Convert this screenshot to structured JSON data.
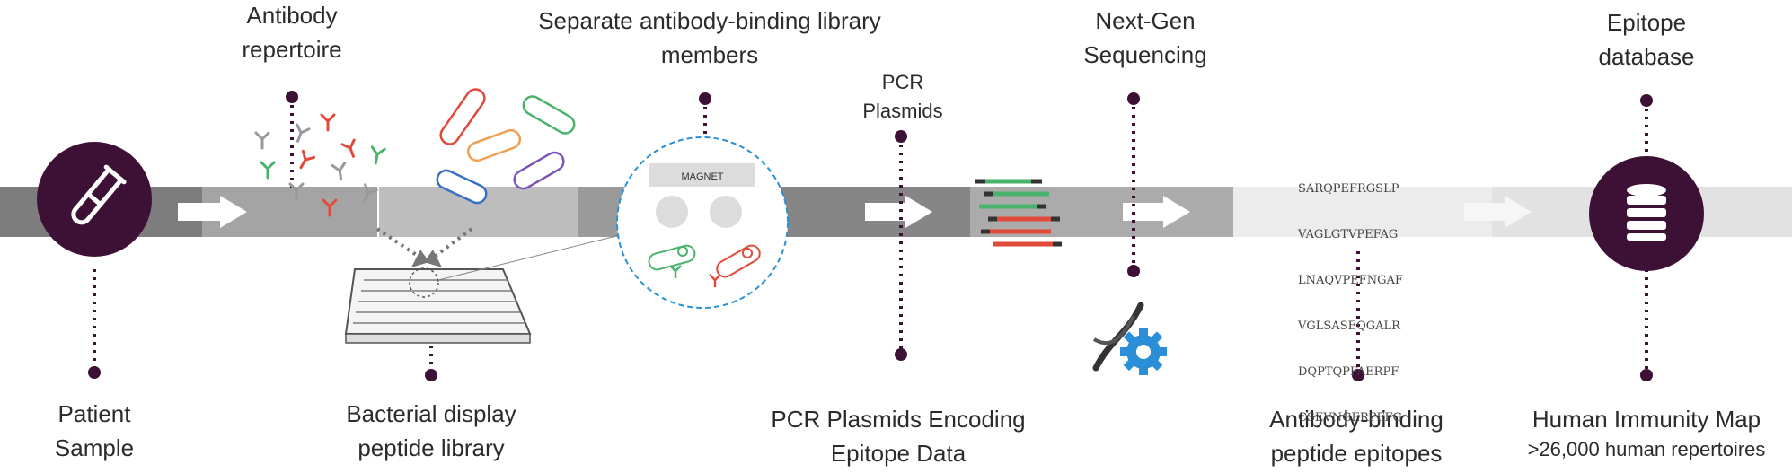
{
  "steps": {
    "patient_sample": {
      "line1": "Patient",
      "line2": "Sample"
    },
    "antibody_repertoire": {
      "line1": "Antibody",
      "line2": "repertoire"
    },
    "bacterial_library": {
      "line1": "Bacterial display",
      "line2": "peptide library"
    },
    "separate": {
      "line1": "Separate antibody-binding library",
      "line2": "members"
    },
    "pcr_plasmids_top": {
      "line1": "PCR",
      "line2": "Plasmids"
    },
    "pcr_plasmids_bottom": {
      "line1": "PCR Plasmids Encoding",
      "line2": "Epitope Data"
    },
    "ngs": {
      "line1": "Next-Gen",
      "line2": "Sequencing"
    },
    "epitopes": {
      "line1": "Antibody-binding",
      "line2": "peptide epitopes"
    },
    "epitope_db": {
      "line1": "Epitope",
      "line2": "database"
    },
    "immunity_map": {
      "line1": "Human Immunity Map",
      "line2": ">26,000 human repertoires"
    }
  },
  "magnet_label": "MAGNET",
  "sequences": [
    "SARQPEFRGSLP",
    "VAGLGTVPEFAG",
    "LNAQVPEFNGAF",
    "VGLSASEQGALR",
    "DQPTQPFAERPF",
    "CSEVNGERPFFG"
  ],
  "icons": {
    "patient": "test-tube-icon",
    "database": "database-icon",
    "dna": "dna-gear-icon"
  },
  "colors": {
    "accent": "#3d1036",
    "band_dark": "#8a8a8a",
    "band_mid": "#a8a8a8",
    "band_light": "#e6e6e6",
    "magnet_ring": "#2a8fd6"
  }
}
